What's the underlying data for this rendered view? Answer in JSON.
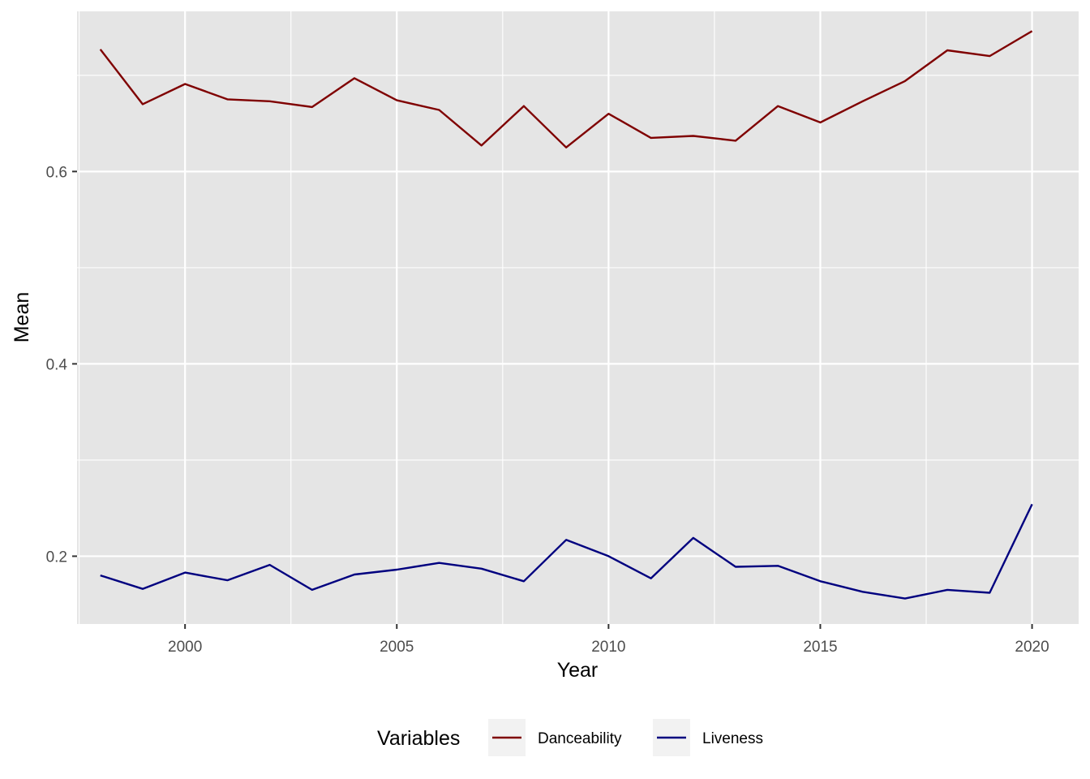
{
  "chart_data": {
    "type": "line",
    "xlabel": "Year",
    "ylabel": "Mean",
    "xlim": [
      1997.45,
      2021.1
    ],
    "ylim": [
      0.1295,
      0.7665
    ],
    "x_ticks": [
      2000,
      2005,
      2010,
      2015,
      2020
    ],
    "x_tick_labels": [
      "2000",
      "2005",
      "2010",
      "2015",
      "2020"
    ],
    "y_ticks": [
      0.2,
      0.4,
      0.6
    ],
    "y_tick_labels": [
      "0.2",
      "0.4",
      "0.6"
    ],
    "grid": true,
    "legend": {
      "title": "Variables",
      "position": "bottom",
      "entries": [
        "Danceability",
        "Liveness"
      ]
    },
    "x": [
      1998,
      1999,
      2000,
      2001,
      2002,
      2003,
      2004,
      2005,
      2006,
      2007,
      2008,
      2009,
      2010,
      2011,
      2012,
      2013,
      2014,
      2015,
      2016,
      2017,
      2018,
      2019,
      2020
    ],
    "series": [
      {
        "name": "Danceability",
        "color": "#7f0000",
        "values": [
          0.727,
          0.67,
          0.691,
          0.675,
          0.673,
          0.667,
          0.697,
          0.674,
          0.664,
          0.627,
          0.668,
          0.625,
          0.66,
          0.635,
          0.637,
          0.632,
          0.668,
          0.651,
          0.673,
          0.694,
          0.726,
          0.72,
          0.746
        ]
      },
      {
        "name": "Liveness",
        "color": "#00007f",
        "values": [
          0.18,
          0.166,
          0.183,
          0.175,
          0.191,
          0.165,
          0.181,
          0.186,
          0.193,
          0.187,
          0.174,
          0.217,
          0.2,
          0.177,
          0.219,
          0.189,
          0.19,
          0.174,
          0.163,
          0.156,
          0.165,
          0.162,
          0.254
        ]
      }
    ]
  }
}
